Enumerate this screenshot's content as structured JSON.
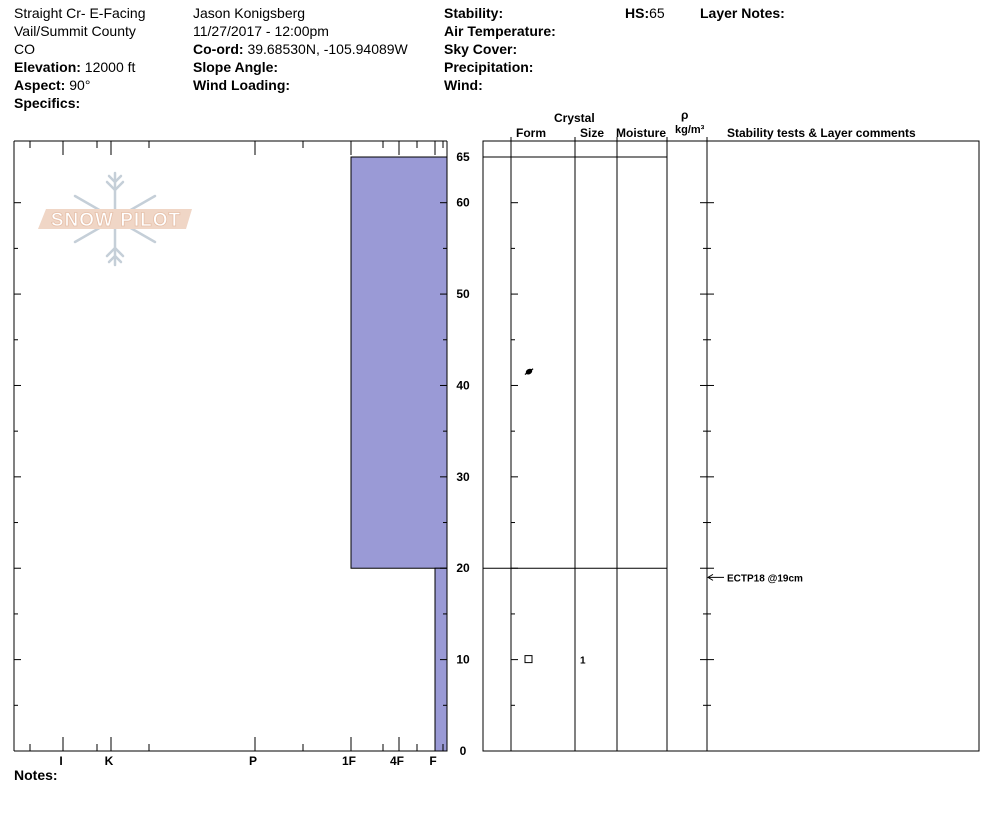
{
  "header": {
    "location_line1": "Straight Cr- E-Facing",
    "location_line2": "Vail/Summit County",
    "location_line3": "CO",
    "elevation_label": "Elevation:",
    "elevation_value": "12000 ft",
    "aspect_label": "Aspect:",
    "aspect_value": "90°",
    "specifics_label": "Specifics:",
    "observer": "Jason Konigsberg",
    "datetime": "11/27/2017 - 12:00pm",
    "coord_label": "Co-ord:",
    "coord_value": "39.68530N, -105.94089W",
    "slope_label": "Slope Angle:",
    "wind_loading_label": "Wind Loading:",
    "stability_label": "Stability:",
    "air_temp_label": "Air Temperature:",
    "sky_cover_label": "Sky Cover:",
    "precip_label": "Precipitation:",
    "wind_label": "Wind:",
    "hs_label": "HS:",
    "hs_value": "65",
    "layer_notes_label": "Layer Notes:"
  },
  "logo_text": "SNOW PILOT",
  "notes_label": "Notes:",
  "columns": {
    "crystal": "Crystal",
    "form": "Form",
    "size": "Size",
    "moisture": "Moisture",
    "rho": "ρ",
    "density_unit": "kg/m³",
    "stability": "Stability tests & Layer comments"
  },
  "chart_data": {
    "type": "bar",
    "title": "",
    "xlabel": "",
    "ylabel": "",
    "ylim": [
      0,
      65
    ],
    "y_ticks": [
      "0",
      "10",
      "20",
      "30",
      "40",
      "50",
      "60",
      "65"
    ],
    "hardness_labels": [
      "I",
      "K",
      "P",
      "1F",
      "4F",
      "F"
    ],
    "fill_color": "#9a9ad6",
    "layers": [
      {
        "top": 65,
        "bottom": 20,
        "hardness": "1F",
        "form": "precipitation-particle",
        "size": ""
      },
      {
        "top": 20,
        "bottom": 0,
        "hardness": "F",
        "form": "faceted-crystal",
        "size": "1"
      }
    ],
    "stability_tests": [
      {
        "depth": 19,
        "label": "ECTP18 @19cm"
      }
    ]
  }
}
